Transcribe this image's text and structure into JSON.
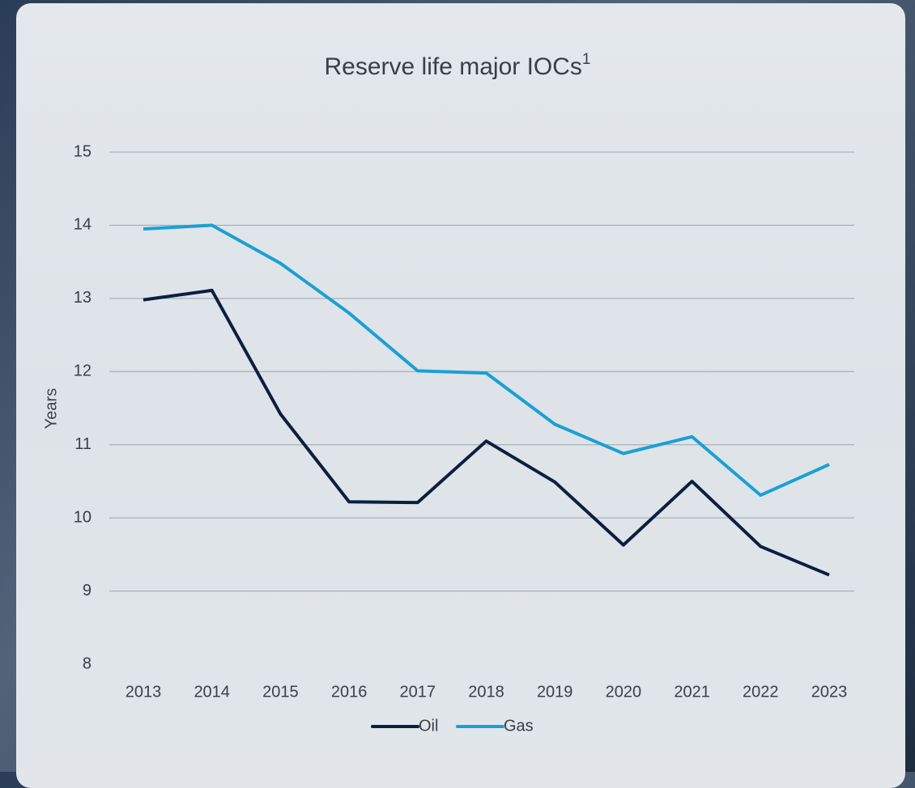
{
  "chart_data": {
    "type": "line",
    "title": "Reserve life major IOCs",
    "title_superscript": "1",
    "y_label": "Years",
    "categories": [
      "2013",
      "2014",
      "2015",
      "2016",
      "2017",
      "2018",
      "2019",
      "2020",
      "2021",
      "2022",
      "2023"
    ],
    "series": [
      {
        "name": "Oil",
        "color": "#0b1f3f",
        "values": [
          12.98,
          13.11,
          11.42,
          10.22,
          10.21,
          11.05,
          10.49,
          9.63,
          10.5,
          9.61,
          9.22
        ]
      },
      {
        "name": "Gas",
        "color": "#1aa0d4",
        "values": [
          13.95,
          14.0,
          13.48,
          12.8,
          12.01,
          11.98,
          11.28,
          10.88,
          11.11,
          10.31,
          10.73
        ]
      }
    ],
    "ylim": [
      8,
      15
    ],
    "yticks": [
      8,
      9,
      10,
      11,
      12,
      13,
      14,
      15
    ],
    "grid": true,
    "legend": "bottom"
  }
}
